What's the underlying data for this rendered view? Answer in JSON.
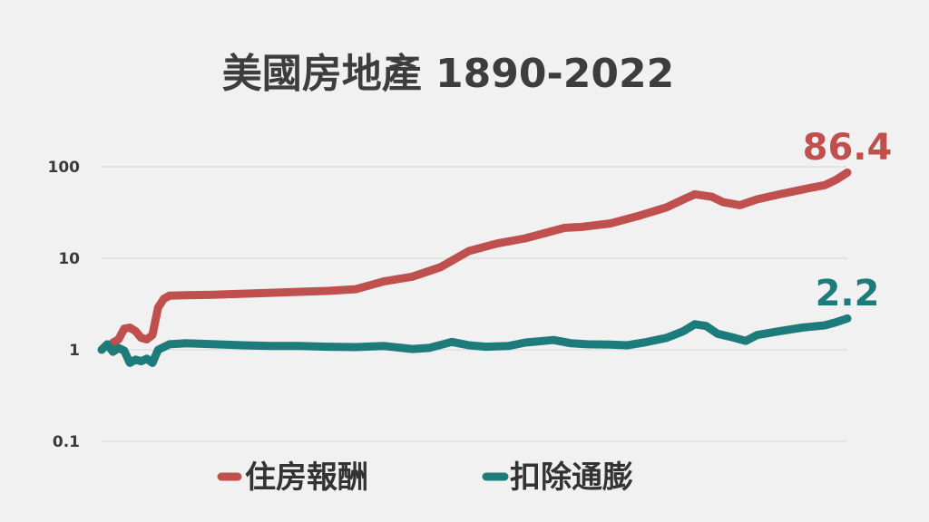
{
  "chart_data": {
    "type": "line",
    "title": "美國房地產 1890-2022",
    "xlabel": "",
    "ylabel": "",
    "x_range": [
      1890,
      2022
    ],
    "y_scale": "log",
    "ylim": [
      0.1,
      100
    ],
    "y_ticks": [
      {
        "value": 100,
        "label": "100"
      },
      {
        "value": 10,
        "label": "10"
      },
      {
        "value": 1,
        "label": "1"
      },
      {
        "value": 0.1,
        "label": "0.1"
      }
    ],
    "grid": true,
    "legend_position": "bottom",
    "series": [
      {
        "name": "住房報酬",
        "color": "#c0504d",
        "end_label": "86.4",
        "points": [
          [
            1892,
            1.2
          ],
          [
            1893,
            1.3
          ],
          [
            1894,
            1.7
          ],
          [
            1895,
            1.75
          ],
          [
            1896,
            1.6
          ],
          [
            1897,
            1.35
          ],
          [
            1898,
            1.3
          ],
          [
            1899,
            1.45
          ],
          [
            1900,
            2.9
          ],
          [
            1901,
            3.6
          ],
          [
            1902,
            3.9
          ],
          [
            1905,
            3.95
          ],
          [
            1910,
            4.0
          ],
          [
            1915,
            4.1
          ],
          [
            1920,
            4.2
          ],
          [
            1925,
            4.3
          ],
          [
            1930,
            4.4
          ],
          [
            1935,
            4.6
          ],
          [
            1940,
            5.6
          ],
          [
            1945,
            6.3
          ],
          [
            1950,
            8.0
          ],
          [
            1955,
            12.0
          ],
          [
            1960,
            14.5
          ],
          [
            1965,
            16.5
          ],
          [
            1970,
            20.0
          ],
          [
            1972,
            21.5
          ],
          [
            1975,
            22.0
          ],
          [
            1980,
            24.0
          ],
          [
            1985,
            29.0
          ],
          [
            1990,
            36.0
          ],
          [
            1993,
            44.0
          ],
          [
            1995,
            50.0
          ],
          [
            1998,
            47.0
          ],
          [
            2000,
            41.0
          ],
          [
            2003,
            38.0
          ],
          [
            2006,
            44.0
          ],
          [
            2010,
            50.0
          ],
          [
            2015,
            58.0
          ],
          [
            2018,
            63.0
          ],
          [
            2020,
            72.0
          ],
          [
            2022,
            86.4
          ]
        ]
      },
      {
        "name": "扣除通膨",
        "color": "#1e7b7b",
        "end_label": "2.2",
        "points": [
          [
            1890,
            1.0
          ],
          [
            1891,
            1.15
          ],
          [
            1892,
            0.95
          ],
          [
            1893,
            1.05
          ],
          [
            1894,
            0.98
          ],
          [
            1895,
            0.72
          ],
          [
            1896,
            0.78
          ],
          [
            1897,
            0.75
          ],
          [
            1898,
            0.8
          ],
          [
            1899,
            0.72
          ],
          [
            1900,
            1.0
          ],
          [
            1902,
            1.15
          ],
          [
            1905,
            1.18
          ],
          [
            1910,
            1.15
          ],
          [
            1915,
            1.12
          ],
          [
            1920,
            1.1
          ],
          [
            1925,
            1.1
          ],
          [
            1930,
            1.08
          ],
          [
            1935,
            1.07
          ],
          [
            1940,
            1.1
          ],
          [
            1945,
            1.02
          ],
          [
            1948,
            1.05
          ],
          [
            1952,
            1.22
          ],
          [
            1955,
            1.12
          ],
          [
            1958,
            1.08
          ],
          [
            1962,
            1.1
          ],
          [
            1965,
            1.2
          ],
          [
            1970,
            1.28
          ],
          [
            1973,
            1.18
          ],
          [
            1976,
            1.15
          ],
          [
            1980,
            1.14
          ],
          [
            1983,
            1.12
          ],
          [
            1986,
            1.2
          ],
          [
            1990,
            1.35
          ],
          [
            1993,
            1.6
          ],
          [
            1995,
            1.9
          ],
          [
            1997,
            1.82
          ],
          [
            1999,
            1.5
          ],
          [
            2002,
            1.35
          ],
          [
            2004,
            1.25
          ],
          [
            2006,
            1.45
          ],
          [
            2010,
            1.6
          ],
          [
            2014,
            1.75
          ],
          [
            2018,
            1.85
          ],
          [
            2020,
            2.0
          ],
          [
            2022,
            2.2
          ]
        ]
      }
    ]
  }
}
